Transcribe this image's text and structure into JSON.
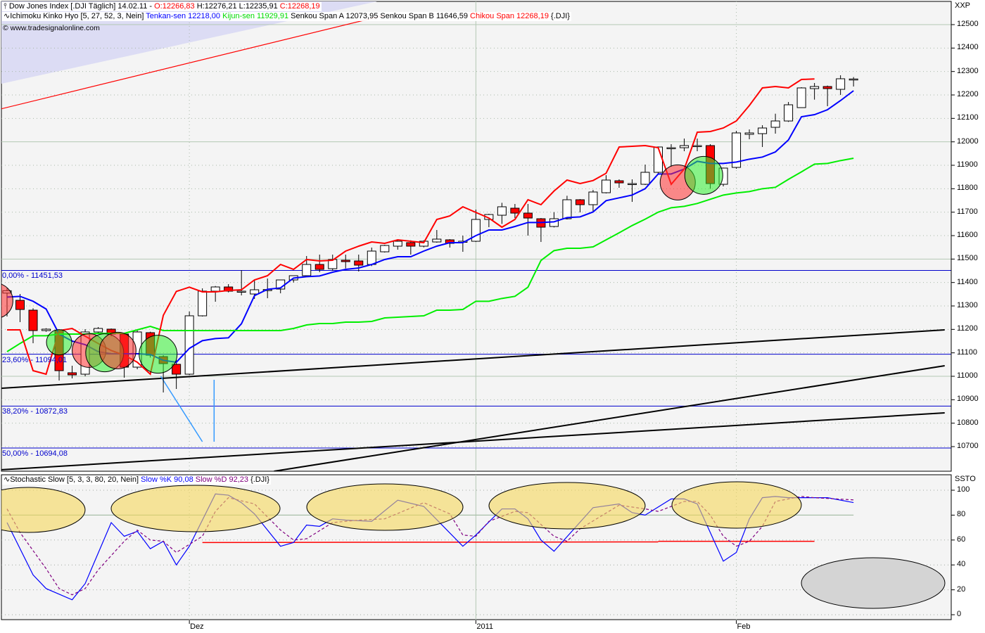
{
  "header": {
    "icon": "candlestick-icon",
    "symbol": "Dow Jones Index [.DJI  Täglich] 14.02.11 -",
    "open": "O:12266,83",
    "high": "H:12276,21",
    "low": "L:12235,91",
    "close": "C:12268,19",
    "indicator_icon": "line-indicator-icon",
    "ichimoku": "Ichimoku Kinko Hyo [5, 27, 52, 3, Nein]",
    "tenkan": "Tenkan-sen 12218,00",
    "kijun": "Kijun-sen 11929,91",
    "senkou": "Senkou Span A 12073,95 Senkou Span B 11646,59",
    "chikou": "Chikou Span 12268,19",
    "suffix": "{.DJI}",
    "copyright": "© www.tradesignalonline.com"
  },
  "stoch_header": {
    "title": "Stochastic Slow [5, 3, 3, 80, 20, Nein]",
    "k": "Slow %K 90,08",
    "d": "Slow %D 92,23",
    "suffix": "{.DJI}"
  },
  "colors": {
    "up": "#ffffff",
    "down": "#ff0000",
    "tenkan": "#0000ff",
    "kijun": "#00ee00",
    "chikou": "#ff0000",
    "k": "#0000ff",
    "d": "#800080",
    "fib": "#0000cc",
    "plot_bg": "#f4f4f4",
    "annot": "#3399ff"
  },
  "chart_data": [
    {
      "type": "candlestick",
      "title": "Dow Jones Index [.DJI Täglich]",
      "axis_label": "XXP",
      "ylim": [
        10600,
        12550
      ],
      "yticks": [
        12500,
        12400,
        12300,
        12200,
        12100,
        12000,
        11900,
        11800,
        11700,
        11600,
        11500,
        11400,
        11300,
        11200,
        11100,
        11000,
        10900,
        10800,
        10700
      ],
      "xticks": [
        "Dez",
        "2011",
        "Feb"
      ],
      "xtick_index": [
        14,
        36,
        56
      ],
      "ohlc": [
        [
          11355,
          11375,
          11255,
          11365
        ],
        [
          11324,
          11351,
          11231,
          11285
        ],
        [
          11282,
          11290,
          11141,
          11195
        ],
        [
          11195,
          11205,
          11190,
          11201
        ],
        [
          11195,
          11200,
          10982,
          11024
        ],
        [
          11015,
          11045,
          10991,
          11006
        ],
        [
          11009,
          11201,
          11000,
          11189
        ],
        [
          11189,
          11210,
          11180,
          11204
        ],
        [
          11201,
          11204,
          11170,
          11180
        ],
        [
          11180,
          11185,
          10994,
          11039
        ],
        [
          11039,
          11201,
          11030,
          11189
        ],
        [
          11186,
          11190,
          11080,
          11090
        ],
        [
          11084,
          11090,
          10931,
          11054
        ],
        [
          11051,
          11069,
          10946,
          11009
        ],
        [
          11009,
          11276,
          11005,
          11258
        ],
        [
          11258,
          11375,
          11255,
          11363
        ],
        [
          11363,
          11385,
          11318,
          11381
        ],
        [
          11381,
          11393,
          11358,
          11363
        ],
        [
          11360,
          11453,
          11345,
          11363
        ],
        [
          11351,
          11411,
          11330,
          11369
        ],
        [
          11369,
          11417,
          11333,
          11370
        ],
        [
          11372,
          11411,
          11354,
          11411
        ],
        [
          11411,
          11430,
          11400,
          11429
        ],
        [
          11429,
          11513,
          11425,
          11477
        ],
        [
          11477,
          11519,
          11444,
          11456
        ],
        [
          11459,
          11519,
          11450,
          11498
        ],
        [
          11495,
          11519,
          11460,
          11489
        ],
        [
          11492,
          11519,
          11447,
          11474
        ],
        [
          11477,
          11549,
          11470,
          11534
        ],
        [
          11531,
          11561,
          11528,
          11558
        ],
        [
          11555,
          11580,
          11540,
          11576
        ],
        [
          11570,
          11580,
          11519,
          11555
        ],
        [
          11555,
          11580,
          11550,
          11576
        ],
        [
          11573,
          11624,
          11570,
          11585
        ],
        [
          11582,
          11585,
          11549,
          11567
        ],
        [
          11573,
          11600,
          11531,
          11576
        ],
        [
          11576,
          11711,
          11573,
          11669
        ],
        [
          11669,
          11693,
          11636,
          11690
        ],
        [
          11687,
          11740,
          11650,
          11723
        ],
        [
          11717,
          11735,
          11675,
          11696
        ],
        [
          11696,
          11735,
          11600,
          11675
        ],
        [
          11672,
          11675,
          11573,
          11636
        ],
        [
          11639,
          11700,
          11635,
          11672
        ],
        [
          11672,
          11770,
          11669,
          11753
        ],
        [
          11753,
          11756,
          11699,
          11732
        ],
        [
          11732,
          11795,
          11699,
          11786
        ],
        [
          11783,
          11858,
          11780,
          11837
        ],
        [
          11834,
          11840,
          11804,
          11825
        ],
        [
          11822,
          11840,
          11744,
          11822
        ],
        [
          11819,
          11903,
          11816,
          11870
        ],
        [
          11870,
          11980,
          11865,
          11978
        ],
        [
          11975,
          11990,
          11894,
          11975
        ],
        [
          11975,
          12014,
          11960,
          11984
        ],
        [
          11984,
          12014,
          11960,
          11984
        ],
        [
          11984,
          11990,
          11800,
          11822
        ],
        [
          11819,
          11890,
          11810,
          11888
        ],
        [
          11891,
          12047,
          11885,
          12038
        ],
        [
          12032,
          12053,
          12011,
          12038
        ],
        [
          12035,
          12071,
          11978,
          12059
        ],
        [
          12062,
          12120,
          12035,
          12089
        ],
        [
          12089,
          12170,
          12085,
          12158
        ],
        [
          12146,
          12233,
          12146,
          12230
        ],
        [
          12227,
          12251,
          12180,
          12236
        ],
        [
          12236,
          12240,
          12152,
          12227
        ],
        [
          12224,
          12284,
          12200,
          12269
        ],
        [
          12266.83,
          12276.21,
          12235.91,
          12268.19
        ]
      ],
      "series": [
        {
          "name": "Tenkan-sen",
          "values": [
            11338,
            11341,
            11320,
            11287,
            11180,
            11150,
            11135,
            11105,
            11096,
            11096,
            11096,
            11093,
            11068,
            11060,
            11119,
            11152,
            11161,
            11164,
            11224,
            11344,
            11371,
            11377,
            11419,
            11425,
            11428,
            11444,
            11456,
            11462,
            11477,
            11498,
            11510,
            11510,
            11534,
            11555,
            11570,
            11570,
            11600,
            11624,
            11624,
            11639,
            11656,
            11656,
            11659,
            11677,
            11680,
            11701,
            11749,
            11761,
            11773,
            11800,
            11863,
            11863,
            11884,
            11917,
            11908,
            11908,
            11914,
            11926,
            11935,
            11957,
            12008,
            12107,
            12116,
            12137,
            12176,
            12218
          ]
        },
        {
          "name": "Kijun-sen",
          "values": [
            11105,
            11140,
            11173,
            11173,
            11180,
            11180,
            11180,
            11183,
            11183,
            11183,
            11198,
            11213,
            11195,
            11195,
            11195,
            11195,
            11195,
            11195,
            11195,
            11195,
            11195,
            11195,
            11204,
            11219,
            11225,
            11225,
            11231,
            11231,
            11234,
            11249,
            11252,
            11255,
            11258,
            11282,
            11282,
            11285,
            11320,
            11320,
            11332,
            11341,
            11380,
            11494,
            11536,
            11546,
            11546,
            11552,
            11582,
            11612,
            11643,
            11670,
            11700,
            11719,
            11725,
            11737,
            11755,
            11773,
            11782,
            11788,
            11800,
            11806,
            11840,
            11872,
            11905,
            11908,
            11920,
            11929.91
          ]
        },
        {
          "name": "Chikou Span",
          "values": [
            11198,
            11198,
            11024,
            11009,
            11195,
            11204,
            11171,
            11140,
            11110,
            11090,
            11060,
            11009,
            11260,
            11362,
            11380,
            11360,
            11360,
            11366,
            11369,
            11411,
            11429,
            11477,
            11456,
            11498,
            11492,
            11495,
            11534,
            11555,
            11573,
            11567,
            11582,
            11576,
            11570,
            11669,
            11684,
            11723,
            11699,
            11675,
            11636,
            11669,
            11753,
            11732,
            11790,
            11837,
            11822,
            11835,
            11866,
            11978,
            11981,
            11984,
            11975,
            11819,
            11884,
            12041,
            12044,
            12059,
            12089,
            12155,
            12230,
            12236,
            12230,
            12266,
            12268.19
          ]
        }
      ],
      "fib_levels": [
        {
          "label": "0,00% - 11451,53",
          "value": 11451.53
        },
        {
          "label": "23,60% - 11094,01",
          "value": 11094.01
        },
        {
          "label": "38,20% - 10872,83",
          "value": 10872.83
        },
        {
          "label": "50,00% - 10694,08",
          "value": 10694.08
        }
      ],
      "trendlines": [
        [
          [
            -0.4,
            10949
          ],
          [
            72,
            11198
          ]
        ],
        [
          [
            20.5,
            10595
          ],
          [
            72,
            11045
          ]
        ],
        [
          [
            -0.5,
            10601
          ],
          [
            72,
            10844
          ]
        ],
        [
          [
            -0.5,
            12140
          ],
          [
            29,
            12540
          ]
        ]
      ],
      "annotation_lines": [
        [
          [
            11.8,
            11000
          ],
          [
            15.0,
            10721
          ]
        ],
        [
          [
            15.9,
            10985
          ],
          [
            15.9,
            10721
          ]
        ]
      ]
    },
    {
      "type": "line",
      "title": "Stochastic Slow [5, 3, 3, 80, 20, Nein]",
      "axis_label": "SSTO",
      "ylim": [
        0,
        100
      ],
      "yticks": [
        100,
        80,
        60,
        40,
        20,
        0
      ],
      "grid": true,
      "series": [
        {
          "name": "Slow %K",
          "points": [
            [
              0,
              74
            ],
            [
              2,
              32
            ],
            [
              3,
              21
            ],
            [
              5,
              12
            ],
            [
              6,
              25
            ],
            [
              8,
              74
            ],
            [
              9,
              63
            ],
            [
              10,
              67
            ],
            [
              11,
              53
            ],
            [
              12,
              59
            ],
            [
              13,
              40
            ],
            [
              14,
              55
            ],
            [
              16,
              97
            ],
            [
              17,
              96
            ],
            [
              18,
              90
            ],
            [
              19,
              81
            ],
            [
              20,
              68
            ],
            [
              21,
              55
            ],
            [
              22,
              58
            ],
            [
              23,
              72
            ],
            [
              24,
              71
            ],
            [
              25,
              77
            ],
            [
              26,
              76
            ],
            [
              28,
              75
            ],
            [
              30,
              92
            ],
            [
              32,
              87
            ],
            [
              35,
              55
            ],
            [
              36,
              64
            ],
            [
              38,
              85
            ],
            [
              39,
              85
            ],
            [
              40,
              77
            ],
            [
              41,
              60
            ],
            [
              42,
              51
            ],
            [
              45,
              86
            ],
            [
              47,
              89
            ],
            [
              48,
              82
            ],
            [
              49,
              80
            ],
            [
              51,
              93
            ],
            [
              52,
              93
            ],
            [
              53,
              89
            ],
            [
              54,
              66
            ],
            [
              55,
              43
            ],
            [
              56,
              50
            ],
            [
              57,
              77
            ],
            [
              58,
              94
            ],
            [
              59,
              95
            ],
            [
              60,
              94
            ],
            [
              62,
              94
            ],
            [
              63,
              94
            ],
            [
              65,
              90.08
            ]
          ]
        },
        {
          "name": "Slow %D",
          "points": [
            [
              0,
              85
            ],
            [
              1,
              66
            ],
            [
              3,
              37
            ],
            [
              4,
              21
            ],
            [
              5,
              16
            ],
            [
              6,
              21
            ],
            [
              7,
              36
            ],
            [
              9,
              59
            ],
            [
              10,
              68
            ],
            [
              11,
              60
            ],
            [
              12,
              59
            ],
            [
              13,
              50
            ],
            [
              15,
              63
            ],
            [
              16,
              83
            ],
            [
              17,
              94
            ],
            [
              19,
              89
            ],
            [
              21,
              68
            ],
            [
              22,
              60
            ],
            [
              23,
              61
            ],
            [
              25,
              74
            ],
            [
              27,
              76
            ],
            [
              29,
              77
            ],
            [
              32,
              90
            ],
            [
              34,
              81
            ],
            [
              35,
              64
            ],
            [
              36,
              63
            ],
            [
              37,
              75
            ],
            [
              39,
              83
            ],
            [
              40,
              82
            ],
            [
              42,
              63
            ],
            [
              43,
              59
            ],
            [
              44,
              69
            ],
            [
              47,
              88
            ],
            [
              49,
              85
            ],
            [
              50,
              83
            ],
            [
              52,
              91
            ],
            [
              53,
              91
            ],
            [
              54,
              80
            ],
            [
              55,
              63
            ],
            [
              56,
              55
            ],
            [
              57,
              59
            ],
            [
              58,
              71
            ],
            [
              59,
              91
            ],
            [
              61,
              95
            ],
            [
              62,
              94
            ],
            [
              65,
              92.23
            ]
          ]
        }
      ],
      "support_lines": [
        [
          [
            15,
            58
          ],
          [
            50,
            58.5
          ]
        ],
        [
          [
            50,
            59
          ],
          [
            62,
            59
          ]
        ]
      ]
    }
  ]
}
